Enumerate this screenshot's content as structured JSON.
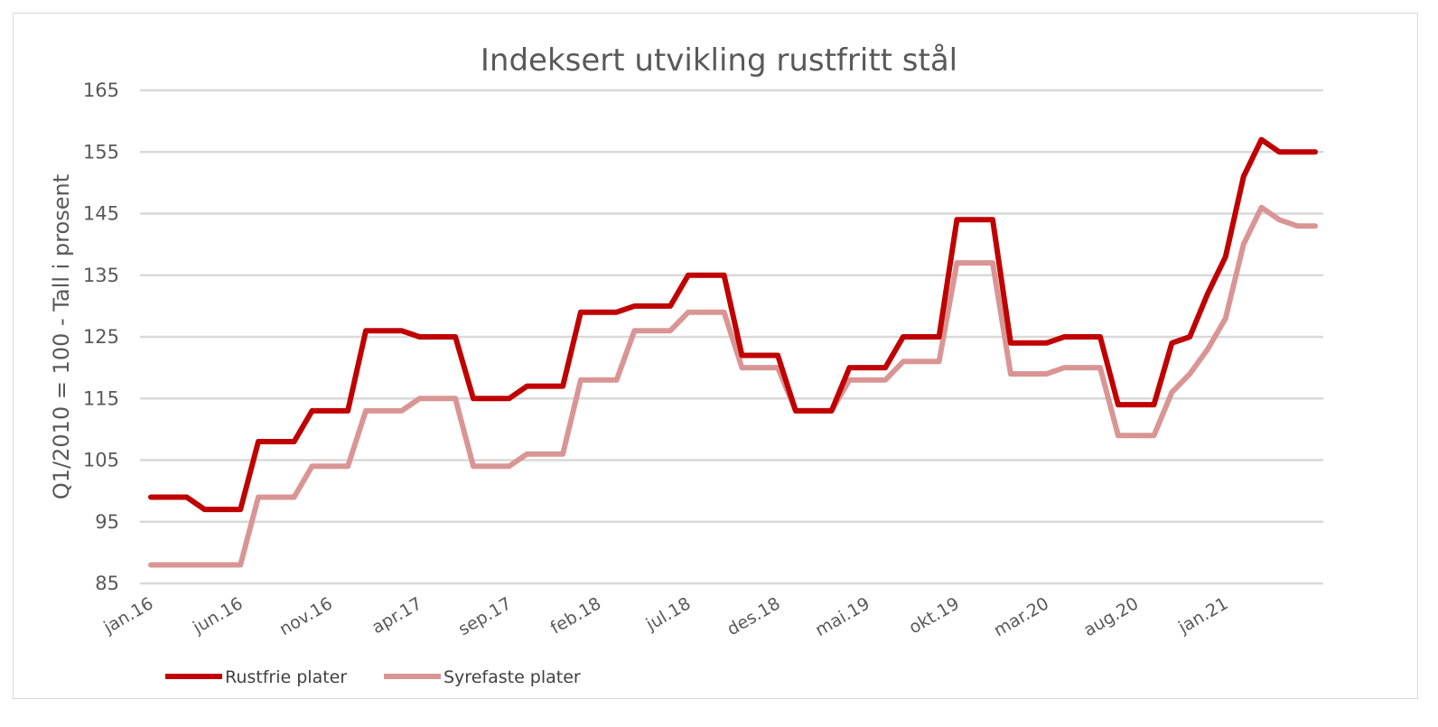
{
  "chart_data": {
    "type": "line",
    "title": "Indeksert utvikling rustfritt stål",
    "xlabel": "",
    "ylabel": "Q1/2010 = 100 - Tall i prosent",
    "ylim": [
      85,
      165
    ],
    "yticks": [
      85,
      95,
      105,
      115,
      125,
      135,
      145,
      155,
      165
    ],
    "x": [
      "jan.16",
      "feb.16",
      "mar.16",
      "apr.16",
      "mai.16",
      "jun.16",
      "jul.16",
      "aug.16",
      "sep.16",
      "okt.16",
      "nov.16",
      "des.16",
      "jan.17",
      "feb.17",
      "mar.17",
      "apr.17",
      "mai.17",
      "jun.17",
      "jul.17",
      "aug.17",
      "sep.17",
      "okt.17",
      "nov.17",
      "des.17",
      "jan.18",
      "feb.18",
      "mar.18",
      "apr.18",
      "mai.18",
      "jun.18",
      "jul.18",
      "aug.18",
      "sep.18",
      "okt.18",
      "nov.18",
      "des.18",
      "jan.19",
      "feb.19",
      "mar.19",
      "apr.19",
      "mai.19",
      "jun.19",
      "jul.19",
      "aug.19",
      "sep.19",
      "okt.19",
      "nov.19",
      "des.19",
      "jan.20",
      "feb.20",
      "mar.20",
      "apr.20",
      "mai.20",
      "jun.20",
      "jul.20",
      "aug.20",
      "sep.20",
      "okt.20",
      "nov.20",
      "des.20",
      "jan.21",
      "feb.21",
      "mar.21",
      "apr.21",
      "mai.21",
      "jun.21"
    ],
    "xtick_labels": [
      "jan.16",
      "jun.16",
      "nov.16",
      "apr.17",
      "sep.17",
      "feb.18",
      "jul.18",
      "des.18",
      "mai.19",
      "okt.19",
      "mar.20",
      "aug.20",
      "jan.21"
    ],
    "grid": true,
    "legend_position": "bottom-left",
    "series": [
      {
        "name": "Rustfrie plater",
        "color": "#c00000",
        "values": [
          99,
          99,
          99,
          97,
          97,
          97,
          108,
          108,
          108,
          113,
          113,
          113,
          126,
          126,
          126,
          125,
          125,
          125,
          115,
          115,
          115,
          117,
          117,
          117,
          129,
          129,
          129,
          130,
          130,
          130,
          135,
          135,
          135,
          122,
          122,
          122,
          113,
          113,
          113,
          120,
          120,
          120,
          125,
          125,
          125,
          144,
          144,
          144,
          124,
          124,
          124,
          125,
          125,
          125,
          114,
          114,
          114,
          124,
          125,
          132,
          138,
          151,
          157,
          155,
          155,
          155
        ]
      },
      {
        "name": "Syrefaste plater",
        "color": "#d99594",
        "values": [
          88,
          88,
          88,
          88,
          88,
          88,
          99,
          99,
          99,
          104,
          104,
          104,
          113,
          113,
          113,
          115,
          115,
          115,
          104,
          104,
          104,
          106,
          106,
          106,
          118,
          118,
          118,
          126,
          126,
          126,
          129,
          129,
          129,
          120,
          120,
          120,
          113,
          113,
          113,
          118,
          118,
          118,
          121,
          121,
          121,
          137,
          137,
          137,
          119,
          119,
          119,
          120,
          120,
          120,
          109,
          109,
          109,
          116,
          119,
          123,
          128,
          140,
          146,
          144,
          143,
          143
        ]
      }
    ]
  }
}
